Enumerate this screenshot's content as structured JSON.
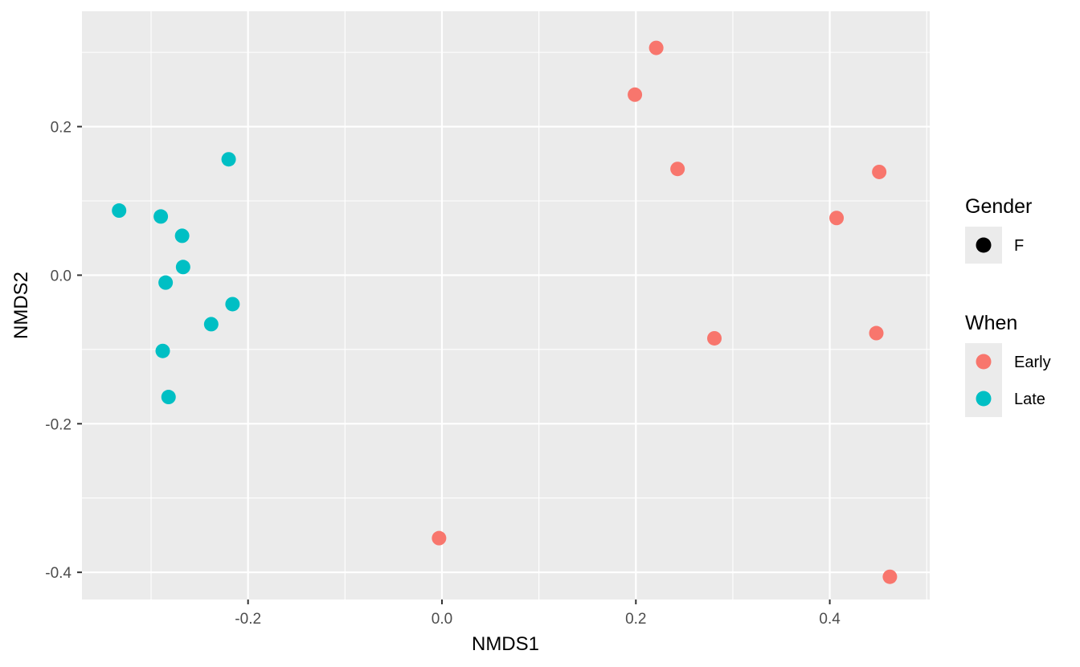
{
  "chart_data": {
    "type": "scatter",
    "xlabel": "NMDS1",
    "ylabel": "NMDS2",
    "xlim": [
      -0.3713,
      0.5031
    ],
    "ylim": [
      -0.4366,
      0.3553
    ],
    "x_ticks": [
      -0.2,
      0.0,
      0.2,
      0.4
    ],
    "x_tick_labels": [
      "-0.2",
      "0.0",
      "0.2",
      "0.4"
    ],
    "y_ticks": [
      -0.4,
      -0.2,
      0.0,
      0.2
    ],
    "y_tick_labels": [
      "-0.4",
      "-0.2",
      "0.0",
      "0.2"
    ],
    "grid": true,
    "legend_position": "right",
    "series": [
      {
        "name": "Early",
        "color": "#F8766D",
        "points": [
          {
            "x": 0.221,
            "y": 0.306
          },
          {
            "x": 0.199,
            "y": 0.243
          },
          {
            "x": 0.243,
            "y": 0.143
          },
          {
            "x": 0.451,
            "y": 0.139
          },
          {
            "x": 0.407,
            "y": 0.077
          },
          {
            "x": 0.281,
            "y": -0.085
          },
          {
            "x": 0.448,
            "y": -0.078
          },
          {
            "x": -0.003,
            "y": -0.354
          },
          {
            "x": 0.462,
            "y": -0.406
          }
        ]
      },
      {
        "name": "Late",
        "color": "#00BFC4",
        "points": [
          {
            "x": -0.22,
            "y": 0.156
          },
          {
            "x": -0.333,
            "y": 0.087
          },
          {
            "x": -0.29,
            "y": 0.079
          },
          {
            "x": -0.268,
            "y": 0.053
          },
          {
            "x": -0.267,
            "y": 0.011
          },
          {
            "x": -0.285,
            "y": -0.01
          },
          {
            "x": -0.216,
            "y": -0.039
          },
          {
            "x": -0.238,
            "y": -0.066
          },
          {
            "x": -0.288,
            "y": -0.102
          },
          {
            "x": -0.282,
            "y": -0.164
          }
        ]
      }
    ],
    "legend": {
      "groups": [
        {
          "title": "Gender",
          "entries": [
            {
              "label": "F",
              "color": "#000000"
            }
          ]
        },
        {
          "title": "When",
          "entries": [
            {
              "label": "Early",
              "color": "#F8766D"
            },
            {
              "label": "Late",
              "color": "#00BFC4"
            }
          ]
        }
      ]
    }
  },
  "colors": {
    "panel_background": "#EBEBEB",
    "grid_line": "#FFFFFF",
    "legend_key_background": "#EBEBEB"
  }
}
